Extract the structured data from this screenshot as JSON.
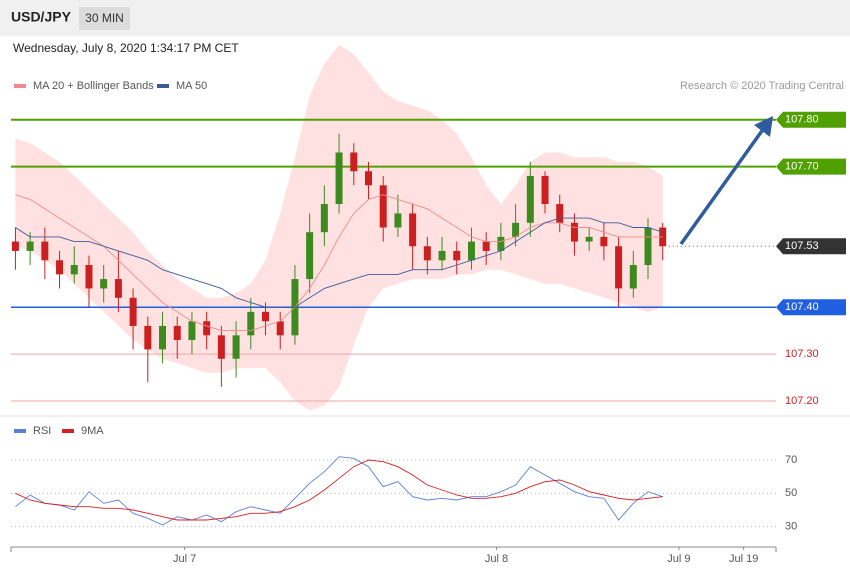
{
  "header": {
    "symbol": "USD/JPY",
    "timeframe": "30 MIN",
    "timestamp": "Wednesday, July 8, 2020 1:34:17 PM CET",
    "source": "Research © 2020 Trading Central"
  },
  "chart_data": [
    {
      "type": "candlestick",
      "xlim": [
        -0.3,
        51.7
      ],
      "ylim": [
        107.17,
        107.97
      ],
      "up_color": "#3d8a1e",
      "down_color": "#cc1f1f",
      "open": [
        107.54,
        107.52,
        107.54,
        107.5,
        107.47,
        107.49,
        107.44,
        107.46,
        107.42,
        107.36,
        107.31,
        107.36,
        107.33,
        107.37,
        107.34,
        107.29,
        107.34,
        107.39,
        107.37,
        107.34,
        107.46,
        107.56,
        107.62,
        107.73,
        107.69,
        107.66,
        107.57,
        107.6,
        107.53,
        107.5,
        107.52,
        107.5,
        107.54,
        107.52,
        107.55,
        107.58,
        107.68,
        107.62,
        107.58,
        107.54,
        107.55,
        107.53,
        107.44,
        107.49,
        107.57
      ],
      "high": [
        107.57,
        107.56,
        107.57,
        107.52,
        107.53,
        107.51,
        107.49,
        107.52,
        107.44,
        107.38,
        107.39,
        107.38,
        107.39,
        107.39,
        107.36,
        107.37,
        107.42,
        107.41,
        107.39,
        107.49,
        107.6,
        107.66,
        107.77,
        107.75,
        107.71,
        107.68,
        107.64,
        107.62,
        107.55,
        107.55,
        107.54,
        107.57,
        107.56,
        107.58,
        107.62,
        107.71,
        107.69,
        107.64,
        107.6,
        107.57,
        107.58,
        107.55,
        107.52,
        107.59,
        107.58
      ],
      "low": [
        107.48,
        107.49,
        107.46,
        107.44,
        107.45,
        107.4,
        107.41,
        107.39,
        107.31,
        107.24,
        107.28,
        107.29,
        107.3,
        107.31,
        107.23,
        107.25,
        107.31,
        107.34,
        107.31,
        107.32,
        107.43,
        107.53,
        107.6,
        107.66,
        107.63,
        107.54,
        107.55,
        107.48,
        107.47,
        107.48,
        107.47,
        107.48,
        107.49,
        107.5,
        107.53,
        107.55,
        107.6,
        107.56,
        107.51,
        107.52,
        107.5,
        107.4,
        107.42,
        107.46,
        107.5
      ],
      "close": [
        107.52,
        107.54,
        107.5,
        107.47,
        107.49,
        107.44,
        107.46,
        107.42,
        107.36,
        107.31,
        107.36,
        107.33,
        107.37,
        107.34,
        107.29,
        107.34,
        107.39,
        107.37,
        107.34,
        107.46,
        107.56,
        107.62,
        107.73,
        107.69,
        107.66,
        107.57,
        107.6,
        107.53,
        107.5,
        107.52,
        107.5,
        107.54,
        107.52,
        107.55,
        107.58,
        107.68,
        107.62,
        107.58,
        107.54,
        107.55,
        107.53,
        107.44,
        107.49,
        107.57,
        107.53
      ],
      "series": [
        {
          "name": "MA 20 + Bollinger Bands",
          "color": "#f08a8a",
          "band_color": "#ffe1e1",
          "values": [
            107.64,
            107.63,
            107.61,
            107.59,
            107.57,
            107.55,
            107.53,
            107.5,
            107.47,
            107.44,
            107.41,
            107.39,
            107.37,
            107.36,
            107.35,
            107.35,
            107.35,
            107.36,
            107.37,
            107.4,
            107.44,
            107.49,
            107.55,
            107.6,
            107.63,
            107.64,
            107.63,
            107.62,
            107.61,
            107.59,
            107.57,
            107.55,
            107.54,
            107.54,
            107.55,
            107.57,
            107.58,
            107.58,
            107.57,
            107.57,
            107.56,
            107.55,
            107.55,
            107.55,
            107.55
          ],
          "upper": [
            107.76,
            107.75,
            107.73,
            107.71,
            107.68,
            107.65,
            107.62,
            107.59,
            107.56,
            107.52,
            107.49,
            107.46,
            107.44,
            107.42,
            107.42,
            107.43,
            107.45,
            107.5,
            107.6,
            107.72,
            107.85,
            107.92,
            107.96,
            107.94,
            107.9,
            107.86,
            107.84,
            107.83,
            107.82,
            107.8,
            107.77,
            107.72,
            107.66,
            107.62,
            107.66,
            107.71,
            107.73,
            107.73,
            107.72,
            107.72,
            107.72,
            107.71,
            107.71,
            107.7,
            107.68
          ],
          "lower": [
            107.53,
            107.52,
            107.5,
            107.48,
            107.45,
            107.42,
            107.39,
            107.36,
            107.33,
            107.31,
            107.29,
            107.28,
            107.27,
            107.26,
            107.26,
            107.27,
            107.27,
            107.27,
            107.24,
            107.2,
            107.18,
            107.19,
            107.23,
            107.32,
            107.4,
            107.44,
            107.45,
            107.46,
            107.46,
            107.46,
            107.47,
            107.47,
            107.48,
            107.48,
            107.47,
            107.46,
            107.45,
            107.45,
            107.44,
            107.43,
            107.42,
            107.41,
            107.4,
            107.39,
            107.4
          ]
        },
        {
          "name": "MA 50",
          "color": "#3b5a9a",
          "values": [
            107.57,
            107.55,
            107.55,
            107.55,
            107.54,
            107.54,
            107.53,
            107.52,
            107.51,
            107.5,
            107.48,
            107.47,
            107.46,
            107.45,
            107.44,
            107.42,
            107.41,
            107.4,
            107.4,
            107.4,
            107.42,
            107.44,
            107.45,
            107.46,
            107.47,
            107.47,
            107.47,
            107.48,
            107.48,
            107.48,
            107.49,
            107.5,
            107.51,
            107.52,
            107.54,
            107.56,
            107.58,
            107.59,
            107.59,
            107.59,
            107.58,
            107.58,
            107.57,
            107.57,
            107.56
          ]
        }
      ],
      "levels": [
        {
          "value": 107.8,
          "label": "107.80",
          "color": "#4fa000",
          "style": "box"
        },
        {
          "value": 107.7,
          "label": "107.70",
          "color": "#4fa000",
          "style": "box"
        },
        {
          "value": 107.53,
          "label": "107.53",
          "color": "#333333",
          "style": "current"
        },
        {
          "value": 107.4,
          "label": "107.40",
          "color": "#1f5fe0",
          "style": "box"
        },
        {
          "value": 107.3,
          "label": "107.30",
          "color": "#cc1f1f",
          "style": "text"
        },
        {
          "value": 107.2,
          "label": "107.20",
          "color": "#cc1f1f",
          "style": "text"
        }
      ]
    },
    {
      "type": "line",
      "xlim": [
        -0.3,
        51.7
      ],
      "ylim": [
        19,
        91
      ],
      "yticks": [
        30,
        50,
        70
      ],
      "grid": true,
      "xticks": [
        {
          "value": 11.5,
          "label": "Jul 7"
        },
        {
          "value": 32.7,
          "label": "Jul 8"
        },
        {
          "value": 45.1,
          "label": "Jul 9"
        },
        {
          "value": 49.5,
          "label": "Jul 19"
        }
      ],
      "series": [
        {
          "name": "RSI",
          "color": "#5b7fd6",
          "values": [
            42,
            49,
            44,
            43,
            40,
            51,
            44,
            46,
            38,
            35,
            31,
            36,
            34,
            37,
            33,
            39,
            42,
            40,
            38,
            47,
            56,
            63,
            72,
            71,
            66,
            54,
            57,
            48,
            46,
            47,
            46,
            48,
            48,
            51,
            55,
            66,
            61,
            56,
            51,
            48,
            47,
            34,
            44,
            51,
            48
          ]
        },
        {
          "name": "9MA",
          "color": "#d42020",
          "values": [
            50,
            46,
            44,
            43,
            42,
            42,
            41,
            41,
            40,
            38,
            36,
            34,
            34,
            34,
            35,
            36,
            38,
            38,
            39,
            42,
            46,
            52,
            59,
            66,
            70,
            69,
            66,
            61,
            55,
            52,
            49,
            47,
            47,
            48,
            50,
            54,
            57,
            58,
            55,
            51,
            49,
            47,
            46,
            47,
            48
          ]
        }
      ]
    }
  ]
}
